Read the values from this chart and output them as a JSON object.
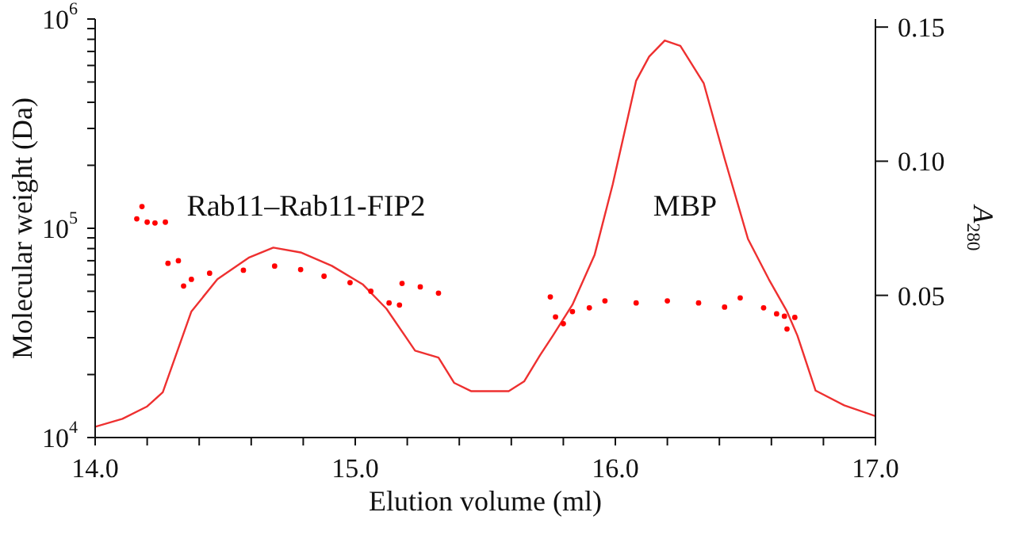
{
  "chart_data": {
    "type": "scatter",
    "xlabel": "Elution volume (ml)",
    "ylabel": "Molecular weight (Da)",
    "y2label": "A$_{280}$",
    "xlim": [
      14.0,
      17.0
    ],
    "xticks": [
      {
        "value": 14.0,
        "label": "14.0"
      },
      {
        "value": 14.2,
        "label": null
      },
      {
        "value": 14.4,
        "label": null
      },
      {
        "value": 14.6,
        "label": null
      },
      {
        "value": 14.8,
        "label": null
      },
      {
        "value": 15.0,
        "label": "15.0"
      },
      {
        "value": 15.2,
        "label": null
      },
      {
        "value": 15.4,
        "label": null
      },
      {
        "value": 15.6,
        "label": null
      },
      {
        "value": 15.8,
        "label": null
      },
      {
        "value": 16.0,
        "label": "16.0"
      },
      {
        "value": 16.2,
        "label": null
      },
      {
        "value": 16.4,
        "label": null
      },
      {
        "value": 16.6,
        "label": null
      },
      {
        "value": 16.8,
        "label": null
      },
      {
        "value": 17.0,
        "label": "17.0"
      }
    ],
    "log": "y",
    "ylim": [
      10000,
      1000000
    ],
    "yticks": [
      {
        "value": 10000,
        "label": "10$^{4}$"
      },
      {
        "value": 20000,
        "label": null
      },
      {
        "value": 30000,
        "label": null
      },
      {
        "value": 40000,
        "label": null
      },
      {
        "value": 50000,
        "label": null
      },
      {
        "value": 60000,
        "label": null
      },
      {
        "value": 70000,
        "label": null
      },
      {
        "value": 80000,
        "label": null
      },
      {
        "value": 90000,
        "label": null
      },
      {
        "value": 100000,
        "label": "10$^{5}$"
      },
      {
        "value": 200000,
        "label": null
      },
      {
        "value": 300000,
        "label": null
      },
      {
        "value": 400000,
        "label": null
      },
      {
        "value": 500000,
        "label": null
      },
      {
        "value": 600000,
        "label": null
      },
      {
        "value": 700000,
        "label": null
      },
      {
        "value": 800000,
        "label": null
      },
      {
        "value": 900000,
        "label": null
      },
      {
        "value": 1000000,
        "label": "10$^{6}$"
      }
    ],
    "y2lim": [
      -0.003,
      0.153
    ],
    "y2ticks": [
      0.05,
      {
        "value": 0.1,
        "label": "0.10"
      },
      0.15
    ],
    "marker": "circle",
    "annotations": [
      "Rab11–Rab11-FIP2",
      "MBP"
    ],
    "series": [
      {
        "color": "#ff0000",
        "x": [
          14.16,
          14.18,
          14.2,
          14.23,
          14.27,
          14.28,
          14.32,
          14.34,
          14.37,
          14.44,
          14.57,
          14.69,
          14.79,
          14.88,
          14.98,
          15.06,
          15.13,
          15.17,
          15.18,
          15.25,
          15.32,
          15.75,
          15.77,
          15.8,
          15.835,
          15.9,
          15.96,
          16.08,
          16.2,
          16.32,
          16.42,
          16.48,
          16.57,
          16.62,
          16.65,
          16.66,
          16.69
        ],
        "values": [
          111000,
          127000,
          107000,
          106000,
          107000,
          68000,
          70000,
          53000,
          57000,
          61000,
          63000,
          66000,
          63500,
          59000,
          55000,
          50000,
          44000,
          43000,
          54500,
          52500,
          49000,
          47000,
          37700,
          35000,
          40000,
          41700,
          45000,
          44000,
          45000,
          44000,
          42000,
          46500,
          41700,
          39000,
          38000,
          33000,
          37500
        ]
      },
      {
        "type": "line",
        "axis": "y2",
        "color": "#ee3030",
        "marker": "none",
        "line_style": "solid",
        "x": [
          14.0,
          14.105,
          14.2,
          14.26,
          14.37,
          14.47,
          14.59,
          14.685,
          14.79,
          14.91,
          15.03,
          15.12,
          15.23,
          15.32,
          15.38,
          15.445,
          15.59,
          15.65,
          15.71,
          15.76,
          15.835,
          15.92,
          15.99,
          16.08,
          16.13,
          16.19,
          16.25,
          16.34,
          16.42,
          16.51,
          16.59,
          16.66,
          16.7,
          16.77,
          16.88,
          17.0
        ],
        "values": [
          0.001,
          0.004,
          0.0086,
          0.0139,
          0.044,
          0.056,
          0.064,
          0.0678,
          0.066,
          0.061,
          0.054,
          0.045,
          0.0294,
          0.0268,
          0.0174,
          0.0143,
          0.0143,
          0.018,
          0.0276,
          0.035,
          0.0465,
          0.065,
          0.0914,
          0.13,
          0.139,
          0.145,
          0.143,
          0.129,
          0.101,
          0.071,
          0.056,
          0.044,
          0.035,
          0.0145,
          0.009,
          0.005
        ]
      }
    ]
  }
}
